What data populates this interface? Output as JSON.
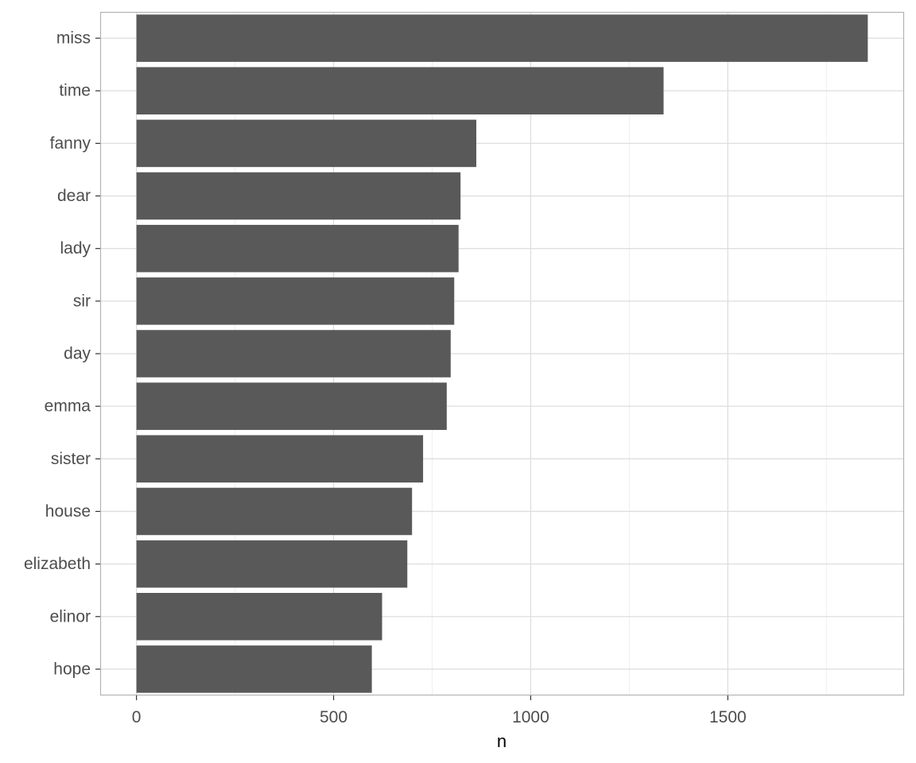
{
  "chart_data": {
    "type": "bar",
    "orientation": "horizontal",
    "categories": [
      "miss",
      "time",
      "fanny",
      "dear",
      "lady",
      "sir",
      "day",
      "emma",
      "sister",
      "house",
      "elizabeth",
      "elinor",
      "hope"
    ],
    "values": [
      1855,
      1337,
      862,
      822,
      817,
      806,
      797,
      787,
      727,
      699,
      687,
      623,
      597
    ],
    "xlabel": "n",
    "ylabel": "",
    "title": "",
    "xlim": [
      -92,
      1947
    ],
    "xticks": [
      0,
      500,
      1000,
      1500
    ],
    "grid": true,
    "legend": "none",
    "colors": {
      "bar": "#595959",
      "panel_border": "#b3b3b3",
      "grid_major": "#dedede",
      "grid_minor": "#efefef",
      "tick_text": "#4d4d4d",
      "title_text": "#000000"
    }
  }
}
